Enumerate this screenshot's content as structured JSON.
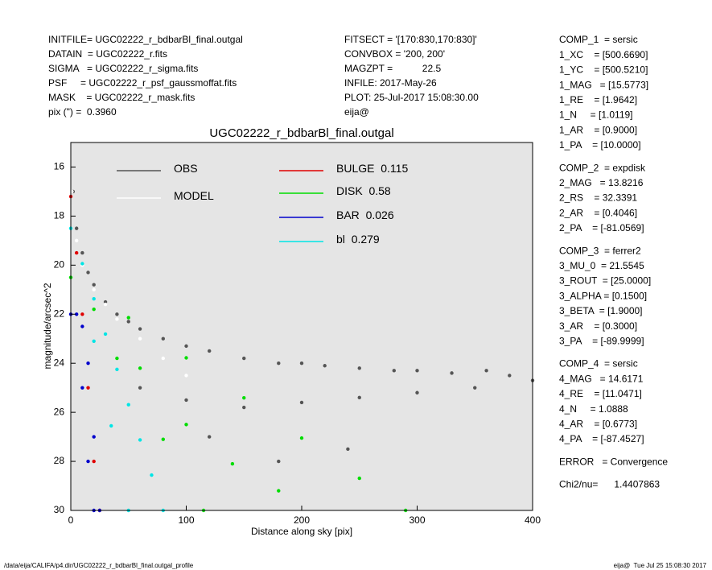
{
  "header": {
    "left": [
      "INITFILE= UGC02222_r_bdbarBl_final.outgal",
      "DATAIN  = UGC02222_r.fits",
      "SIGMA   = UGC02222_r_sigma.fits",
      "PSF     = UGC02222_r_psf_gaussmoffat.fits",
      "MASK    = UGC02222_r_mask.fits",
      "pix (\") =  0.3960"
    ],
    "middle": [
      "FITSECT = '[170:830,170:830]'",
      "CONVBOX = '200, 200'",
      "MAGZPT =           22.5",
      "INFILE: 2017-May-26",
      "PLOT: 25-Jul-2017 15:08:30.00",
      "eija@"
    ]
  },
  "side_panel": [
    [
      "COMP_1  = sersic",
      "1_XC    = [500.6690]",
      "1_YC    = [500.5210]",
      "1_MAG   = [15.5773]",
      "1_RE    = [1.9642]",
      "1_N     = [1.0119]",
      "1_AR    = [0.9000]",
      "1_PA    = [10.0000]"
    ],
    [
      "COMP_2  = expdisk",
      "2_MAG   = 13.8216",
      "2_RS    = 32.3391",
      "2_AR    = [0.4046]",
      "2_PA    = [-81.0569]"
    ],
    [
      "COMP_3  = ferrer2",
      "3_MU_0  = 21.5545",
      "3_ROUT  = [25.0000]",
      "3_ALPHA = [0.1500]",
      "3_BETA  = [1.9000]",
      "3_AR    = [0.3000]",
      "3_PA    = [-89.9999]"
    ],
    [
      "COMP_4  = sersic",
      "4_MAG   = 14.6171",
      "4_RE    = [11.0471]",
      "4_N     = 1.0888",
      "4_AR    = [0.6773]",
      "4_PA    = [-87.4527]"
    ],
    [
      "ERROR   = Convergence"
    ],
    [
      "Chi2/nu=      1.4407863"
    ]
  ],
  "footer": {
    "left": "/data/eija/CALIFA/p4.dir/UGC02222_r_bdbarBl_final.outgal_profile",
    "right": "eija@  Tue Jul 25 15:08:30 2017"
  },
  "chart_data": {
    "type": "scatter",
    "title": "UGC02222_r_bdbarBl_final.outgal",
    "xlabel": "Distance along sky [pix]",
    "ylabel": "magnitude/arcsec^2",
    "xlim": [
      0,
      400
    ],
    "ylim": [
      30,
      15
    ],
    "xticks": [
      0,
      100,
      200,
      300,
      400
    ],
    "yticks": [
      16,
      18,
      20,
      22,
      24,
      26,
      28,
      30
    ],
    "series": [
      {
        "name": "OBS",
        "color": "#555555",
        "x": [
          2,
          5,
          10,
          15,
          20,
          30,
          40,
          50,
          60,
          80,
          100,
          120,
          150,
          180,
          200,
          220,
          250,
          280,
          300,
          330,
          360,
          380,
          400,
          60,
          100,
          150,
          200,
          250,
          300,
          350,
          120,
          180,
          240
        ],
        "values": [
          17,
          18.5,
          19.5,
          20.3,
          20.8,
          21.5,
          22,
          22.3,
          22.6,
          23,
          23.3,
          23.5,
          23.8,
          24,
          24,
          24.1,
          24.2,
          24.3,
          24.3,
          24.4,
          24.3,
          24.5,
          24.7,
          25,
          25.5,
          25.8,
          25.6,
          25.4,
          25.2,
          25,
          27,
          28,
          27.5
        ]
      },
      {
        "name": "MODEL",
        "color": "#ffffff",
        "x": [
          1,
          5,
          10,
          20,
          30,
          40,
          60,
          80,
          100
        ],
        "values": [
          17,
          19,
          20,
          21,
          21.6,
          22.2,
          23,
          23.8,
          24.5
        ]
      },
      {
        "name": "BULGE",
        "fraction": 0.115,
        "color": "#e00000",
        "x": [
          0,
          5,
          10,
          15,
          20,
          25
        ],
        "values": [
          17.2,
          19.5,
          22,
          25,
          28,
          30
        ]
      },
      {
        "name": "DISK",
        "fraction": 0.58,
        "color": "#00dd00",
        "x": [
          0,
          50,
          100,
          150,
          200,
          250,
          290,
          40,
          80,
          115,
          20,
          60,
          100,
          140,
          180
        ],
        "values": [
          20.5,
          22.14,
          23.78,
          25.41,
          27.05,
          28.69,
          30,
          23.8,
          27.1,
          30,
          21.8,
          24.2,
          26.5,
          28.1,
          29.2
        ]
      },
      {
        "name": "BAR",
        "fraction": 0.026,
        "color": "#0000cc",
        "x": [
          0,
          5,
          10,
          15,
          20,
          25,
          10,
          15,
          20
        ],
        "values": [
          22,
          22,
          22.5,
          24,
          27,
          30,
          25,
          28,
          30
        ]
      },
      {
        "name": "bl",
        "fraction": 0.279,
        "color": "#00e5e5",
        "x": [
          0,
          10,
          20,
          30,
          40,
          50,
          60,
          70,
          80,
          20,
          35,
          50
        ],
        "values": [
          18.5,
          19.94,
          21.375,
          22.81,
          24.25,
          25.69,
          27.125,
          28.56,
          30,
          23.1,
          26.55,
          30
        ]
      }
    ]
  }
}
